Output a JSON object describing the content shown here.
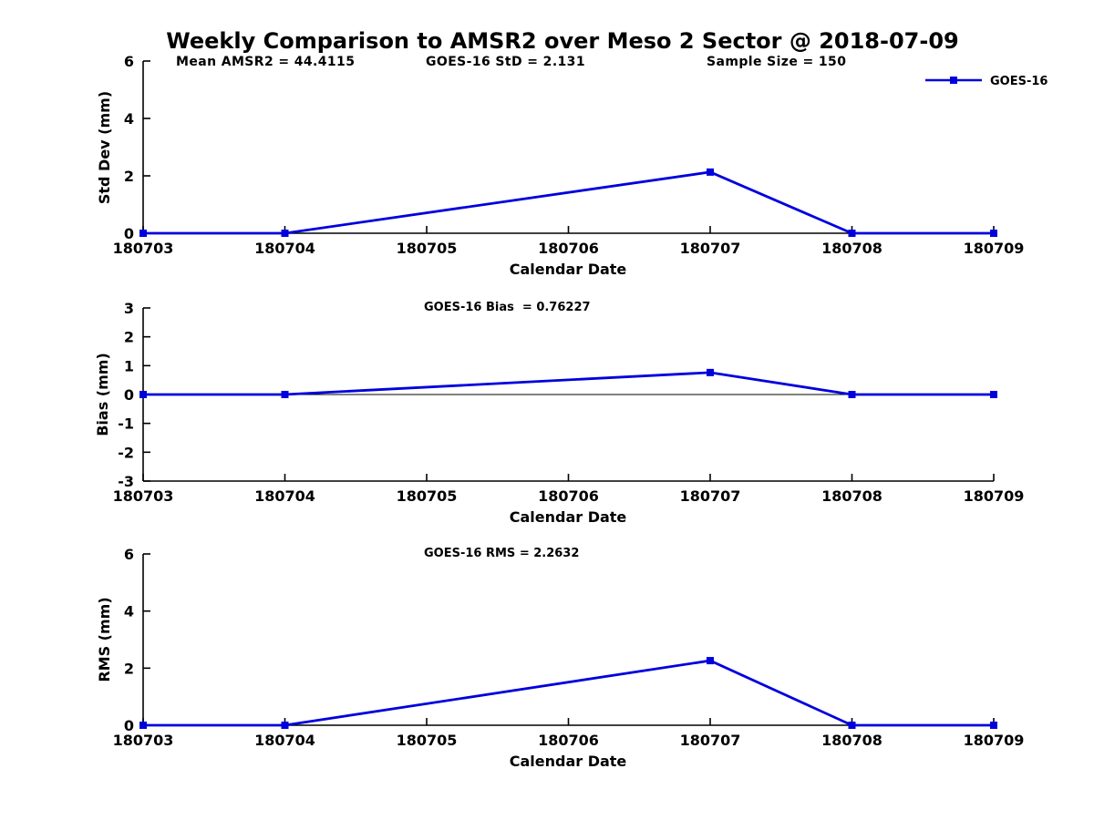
{
  "title": "Weekly Comparison to AMSR2 over Meso 2 Sector @ 2018-07-09",
  "legend": {
    "label": "GOES-16",
    "position": "top-right",
    "color": "#0000dd"
  },
  "colors": {
    "line": "#0000dd",
    "axis": "#000000",
    "text": "#000000",
    "background": "#ffffff"
  },
  "chart_data": [
    {
      "type": "line",
      "name": "std-dev",
      "annotations": [
        "Mean AMSR2 = 44.4115",
        "GOES-16 StD = 2.131",
        "Sample Size = 150"
      ],
      "xlabel": "Calendar Date",
      "ylabel": "Std Dev (mm)",
      "ylim": [
        0,
        6
      ],
      "yticks": [
        0,
        2,
        4,
        6
      ],
      "categories": [
        "180703",
        "180704",
        "180705",
        "180706",
        "180707",
        "180708",
        "180709"
      ],
      "grid": false,
      "zero_line": false,
      "series": [
        {
          "name": "GOES-16",
          "points": [
            {
              "x": "180703",
              "y": 0
            },
            {
              "x": "180704",
              "y": 0
            },
            {
              "x": "180707",
              "y": 2.131
            },
            {
              "x": "180708",
              "y": 0
            },
            {
              "x": "180709",
              "y": 0
            }
          ]
        }
      ]
    },
    {
      "type": "line",
      "name": "bias",
      "annotations": [
        "GOES-16 Bias  = 0.76227"
      ],
      "xlabel": "Calendar Date",
      "ylabel": "Bias (mm)",
      "ylim": [
        -3,
        3
      ],
      "yticks": [
        3,
        2,
        1,
        0,
        -1,
        -2,
        -3
      ],
      "categories": [
        "180703",
        "180704",
        "180705",
        "180706",
        "180707",
        "180708",
        "180709"
      ],
      "grid": false,
      "zero_line": true,
      "series": [
        {
          "name": "GOES-16",
          "points": [
            {
              "x": "180703",
              "y": 0
            },
            {
              "x": "180704",
              "y": 0
            },
            {
              "x": "180707",
              "y": 0.76227
            },
            {
              "x": "180708",
              "y": 0
            },
            {
              "x": "180709",
              "y": 0
            }
          ]
        }
      ]
    },
    {
      "type": "line",
      "name": "rms",
      "annotations": [
        "GOES-16 RMS = 2.2632"
      ],
      "xlabel": "Calendar Date",
      "ylabel": "RMS (mm)",
      "ylim": [
        0,
        6
      ],
      "yticks": [
        0,
        2,
        4,
        6
      ],
      "categories": [
        "180703",
        "180704",
        "180705",
        "180706",
        "180707",
        "180708",
        "180709"
      ],
      "grid": false,
      "zero_line": false,
      "series": [
        {
          "name": "GOES-16",
          "points": [
            {
              "x": "180703",
              "y": 0
            },
            {
              "x": "180704",
              "y": 0
            },
            {
              "x": "180707",
              "y": 2.2632
            },
            {
              "x": "180708",
              "y": 0
            },
            {
              "x": "180709",
              "y": 0
            }
          ]
        }
      ]
    }
  ]
}
